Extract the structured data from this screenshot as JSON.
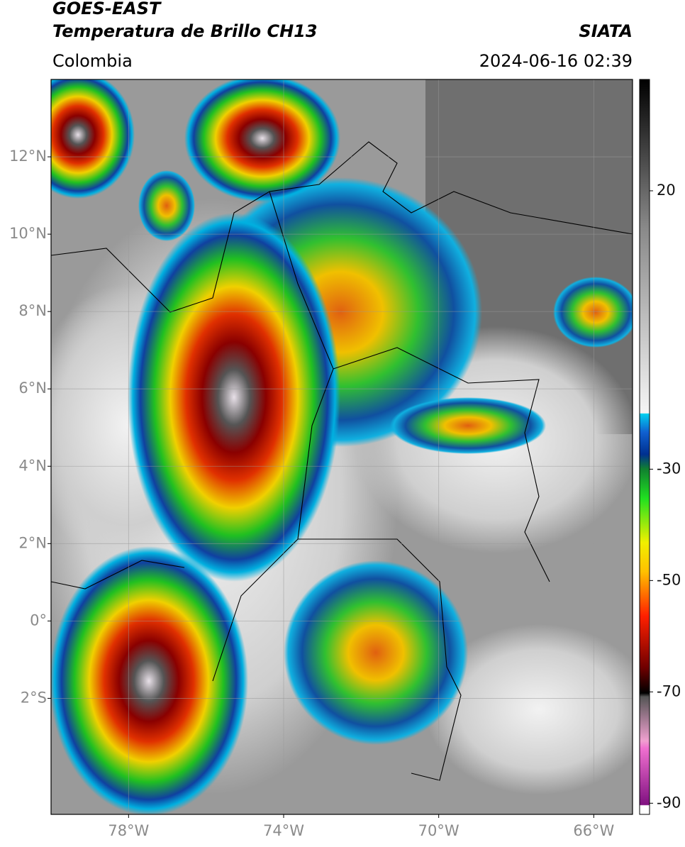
{
  "header": {
    "satellite": "GOES-EAST",
    "product": "Temperatura de Brillo CH13",
    "source": "SIATA",
    "region": "Colombia",
    "datetime": "2024-06-16 02:39"
  },
  "map": {
    "xlim": [
      -80,
      -65
    ],
    "ylim": [
      -5,
      14
    ],
    "grid": true,
    "lat_ticks": [
      {
        "value": 12,
        "label": "12°N"
      },
      {
        "value": 10,
        "label": "10°N"
      },
      {
        "value": 8,
        "label": "8°N"
      },
      {
        "value": 6,
        "label": "6°N"
      },
      {
        "value": 4,
        "label": "4°N"
      },
      {
        "value": 2,
        "label": "2°N"
      },
      {
        "value": 0,
        "label": "0°"
      },
      {
        "value": -2,
        "label": "2°S"
      }
    ],
    "lon_ticks": [
      {
        "value": -78,
        "label": "78°W"
      },
      {
        "value": -74,
        "label": "74°W"
      },
      {
        "value": -70,
        "label": "70°W"
      },
      {
        "value": -66,
        "label": "66°W"
      }
    ]
  },
  "colorbar": {
    "lim": [
      -92,
      40
    ],
    "ticks": [
      20,
      -30,
      -50,
      -70,
      -90
    ]
  }
}
